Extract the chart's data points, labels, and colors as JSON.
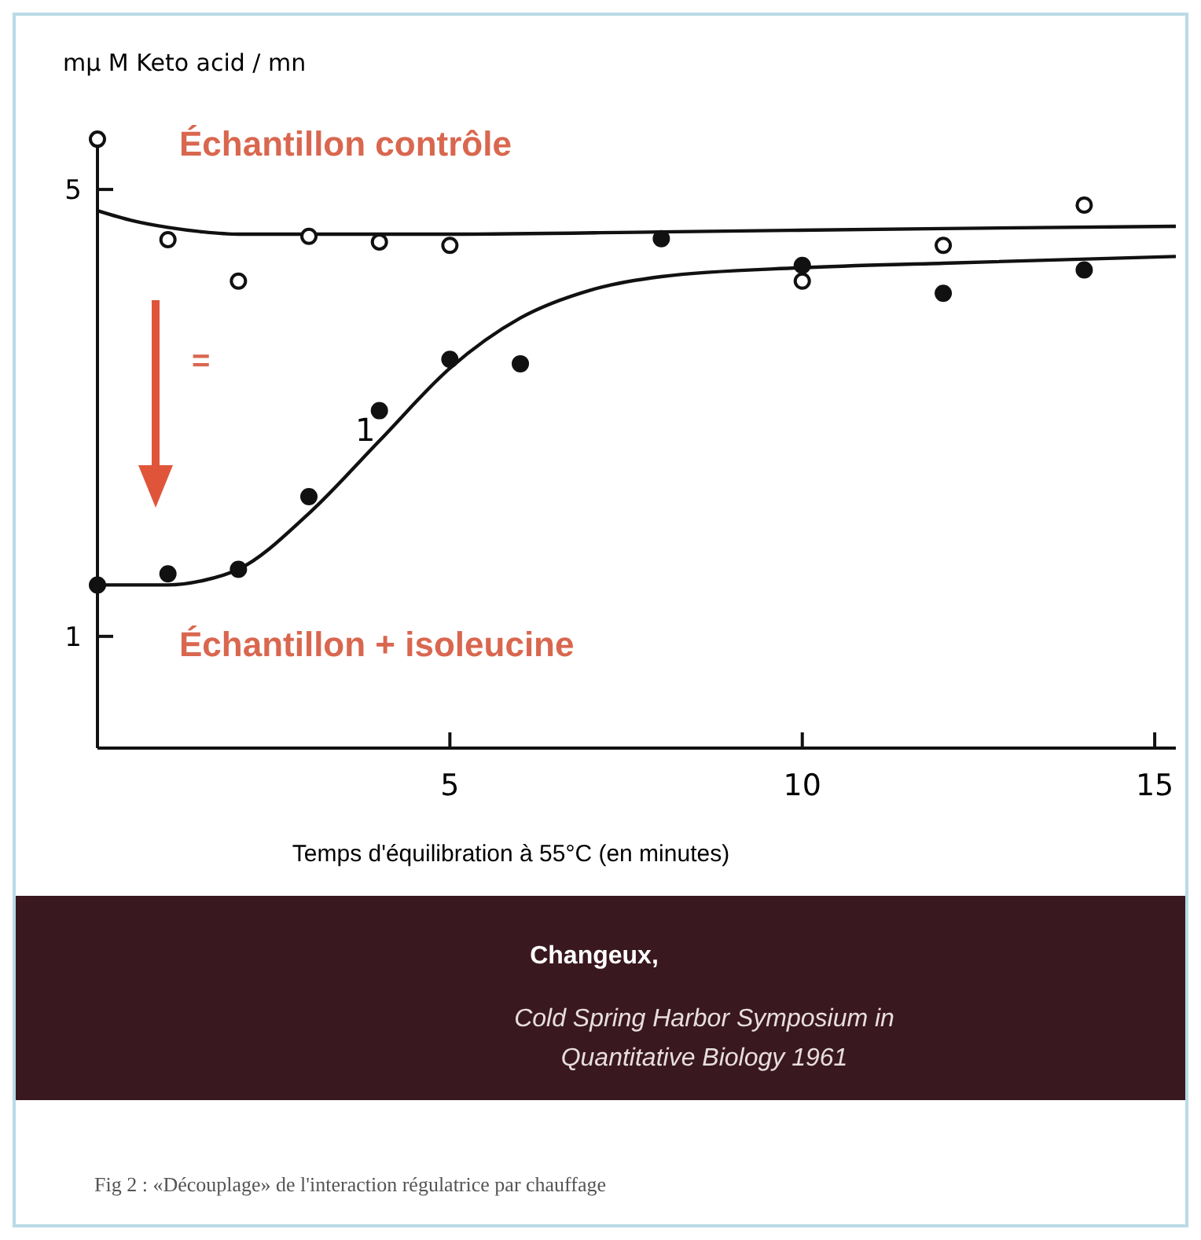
{
  "chart_data": {
    "type": "scatter",
    "xlabel": "Temps d'équilibration à 55°C (en minutes)",
    "ylabel": "mμ M Keto acid / mn",
    "xlim": [
      0,
      15.3
    ],
    "xticks": [
      5,
      10,
      15
    ],
    "ylim": [
      0,
      5.5
    ],
    "yticks": [
      1,
      5
    ],
    "grid": false,
    "series": [
      {
        "type": "line",
        "color": "#111111",
        "marker": "none",
        "line_style": "solid",
        "x": [
          0,
          0.5,
          1,
          1.5,
          2,
          3,
          5,
          8,
          12,
          15.3
        ],
        "values": [
          4.81,
          4.72,
          4.66,
          4.62,
          4.6,
          4.6,
          4.6,
          4.62,
          4.65,
          4.67
        ]
      },
      {
        "type": "line",
        "color": "#111111",
        "marker": "none",
        "line_style": "solid",
        "x": [
          0,
          1,
          1.5,
          2,
          3,
          4,
          5,
          6,
          7,
          8,
          10,
          12,
          15.3
        ],
        "values": [
          1.46,
          1.46,
          1.5,
          1.6,
          2.1,
          2.75,
          3.4,
          3.85,
          4.1,
          4.22,
          4.3,
          4.34,
          4.4
        ]
      },
      {
        "name": "Échantillon contrôle",
        "color": "#111111",
        "marker": "circle",
        "x": [
          0,
          1,
          2,
          3,
          4,
          5,
          10,
          12,
          14
        ],
        "values": [
          5.45,
          4.55,
          4.18,
          4.58,
          4.53,
          4.5,
          4.18,
          4.5,
          4.86
        ]
      },
      {
        "name": "Échantillon + isoleucine",
        "color": "#111111",
        "marker": "circle",
        "x": [
          0,
          1,
          2,
          3,
          4,
          5,
          6,
          8,
          10,
          12,
          14
        ],
        "values": [
          1.46,
          1.56,
          1.6,
          2.25,
          3.02,
          3.48,
          3.44,
          4.56,
          4.32,
          4.07,
          4.28
        ]
      }
    ],
    "annotations": [
      "1",
      "=",
      "Changeux,",
      "Cold Spring  Harbor Symposium in Quantitative Biology 1961",
      "Fig 2 : «Découplage» de l'interaction régulatrice par chauffage"
    ]
  }
}
